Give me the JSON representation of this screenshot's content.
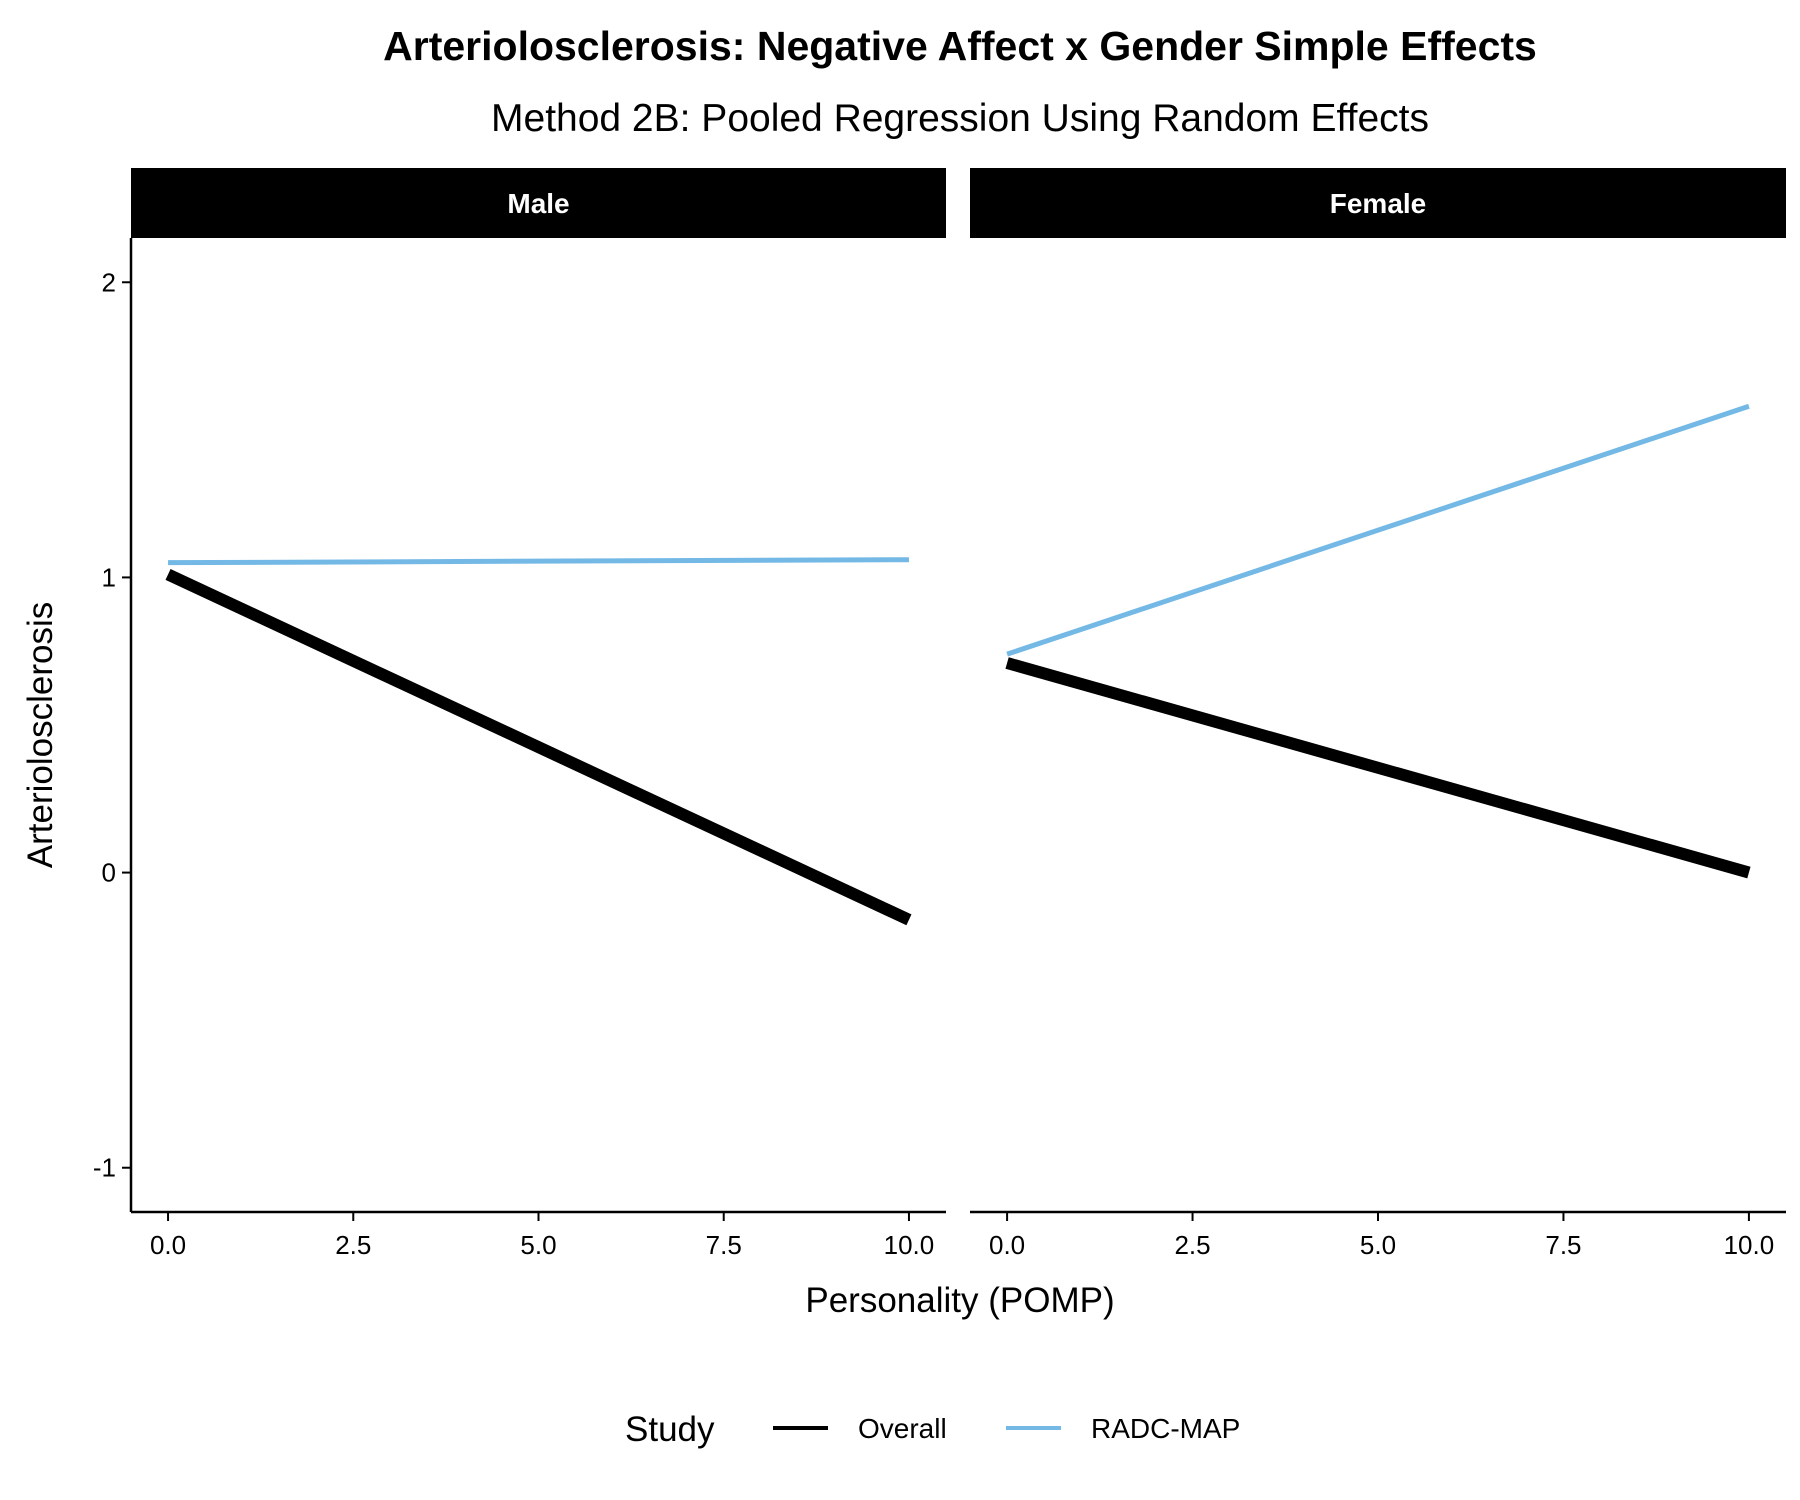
{
  "chart_data": {
    "type": "line",
    "title": "Arteriolosclerosis: Negative Affect x Gender Simple Effects",
    "subtitle": "Method 2B: Pooled Regression Using Random Effects",
    "xlabel": "Personality (POMP)",
    "ylabel": "Arteriolosclerosis",
    "xlim": [
      -0.5,
      10.5
    ],
    "ylim": [
      -1.15,
      2.15
    ],
    "x_ticks": [
      0,
      2.5,
      5,
      7.5,
      10
    ],
    "x_tick_labels": [
      "0.0",
      "2.5",
      "5.0",
      "7.5",
      "10.0"
    ],
    "y_ticks": [
      -1,
      0,
      1,
      2
    ],
    "y_tick_labels": [
      "-1",
      "0",
      "1",
      "2"
    ],
    "grid": false,
    "legend": {
      "title": "Study",
      "placement": "bottom",
      "entries": [
        {
          "name": "Overall",
          "color": "#000000"
        },
        {
          "name": "RADC-MAP",
          "color": "#74b9e6"
        }
      ]
    },
    "panels": [
      {
        "label": "Male",
        "series": [
          {
            "name": "Overall",
            "x": [
              0,
              10
            ],
            "y": [
              1.01,
              -0.16
            ]
          },
          {
            "name": "RADC-MAP",
            "x": [
              0,
              10
            ],
            "y": [
              1.05,
              1.06
            ]
          }
        ]
      },
      {
        "label": "Female",
        "series": [
          {
            "name": "Overall",
            "x": [
              0,
              10
            ],
            "y": [
              0.71,
              0.0
            ]
          },
          {
            "name": "RADC-MAP",
            "x": [
              0,
              10
            ],
            "y": [
              0.74,
              1.58
            ]
          }
        ]
      }
    ]
  }
}
